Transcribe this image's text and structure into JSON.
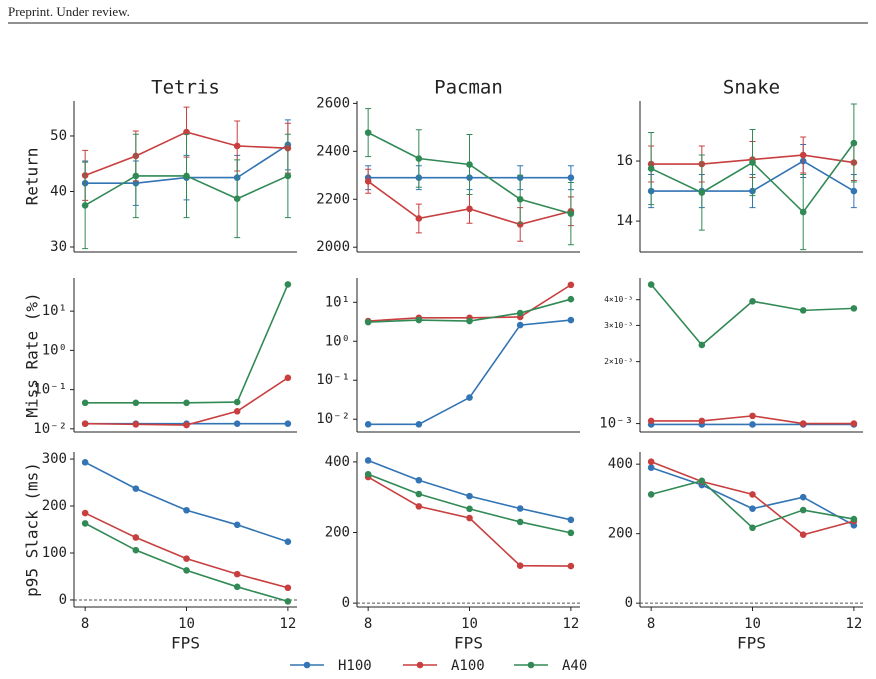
{
  "header": "Preprint. Under review.",
  "legend": [
    {
      "name": "H100",
      "color": "#3274b4"
    },
    {
      "name": "A100",
      "color": "#c83f3f"
    },
    {
      "name": "A40",
      "color": "#318a55"
    }
  ],
  "chart_data": [
    {
      "type": "line",
      "title": "Tetris",
      "ylabel": "Return",
      "x": [
        8,
        9,
        10,
        11,
        12
      ],
      "xlim": [
        7.78,
        12.18
      ],
      "ylim": [
        29.1,
        56.3
      ],
      "yticks": [
        30,
        40,
        50
      ],
      "series": [
        {
          "values": [
            41.5,
            41.5,
            42.5,
            42.5,
            48.4
          ],
          "errors": [
            4,
            4,
            4,
            4,
            4.5
          ]
        },
        {
          "values": [
            42.9,
            46.4,
            50.7,
            48.2,
            47.8
          ],
          "errors": [
            4.5,
            4.5,
            4.5,
            4.5,
            4.5
          ]
        },
        {
          "values": [
            37.5,
            42.8,
            42.8,
            38.7,
            42.8
          ],
          "errors": [
            7.8,
            7.5,
            7.5,
            7,
            7.5
          ]
        }
      ]
    },
    {
      "type": "line",
      "title": "Pacman",
      "x": [
        8,
        9,
        10,
        11,
        12
      ],
      "xlim": [
        7.78,
        12.18
      ],
      "ylim": [
        1980,
        2610
      ],
      "yticks": [
        2000,
        2200,
        2400,
        2600
      ],
      "series": [
        {
          "values": [
            2290,
            2290,
            2290,
            2290,
            2290
          ],
          "errors": [
            50,
            50,
            50,
            50,
            50
          ]
        },
        {
          "values": [
            2275,
            2120,
            2160,
            2095,
            2150
          ],
          "errors": [
            50,
            60,
            60,
            70,
            60
          ]
        },
        {
          "values": [
            2478,
            2370,
            2345,
            2200,
            2140
          ],
          "errors": [
            100,
            120,
            125,
            100,
            130
          ]
        }
      ]
    },
    {
      "type": "line",
      "title": "Snake",
      "x": [
        8,
        9,
        10,
        11,
        12
      ],
      "xlim": [
        7.78,
        12.18
      ],
      "ylim": [
        12.97,
        18
      ],
      "yticks": [
        14,
        16
      ],
      "series": [
        {
          "values": [
            15,
            15,
            15,
            16,
            15
          ],
          "errors": [
            0.55,
            0.55,
            0.55,
            0.55,
            0.55
          ]
        },
        {
          "values": [
            15.9,
            15.9,
            16.05,
            16.2,
            15.95
          ],
          "errors": [
            0.6,
            0.6,
            0.6,
            0.6,
            0.6
          ]
        },
        {
          "values": [
            15.75,
            14.95,
            15.95,
            14.3,
            16.6
          ],
          "errors": [
            1.2,
            1.25,
            1.1,
            1.25,
            1.3
          ]
        }
      ]
    },
    {
      "type": "line",
      "ylabel": "Miss Rate (%)",
      "log": true,
      "x": [
        8,
        9,
        10,
        11,
        12
      ],
      "xlim": [
        7.78,
        12.18
      ],
      "ylim": [
        0.0083,
        70
      ],
      "yticks": [
        {
          "value": 10,
          "label": "10¹"
        },
        {
          "value": 1,
          "label": "10⁰"
        },
        {
          "value": 0.1,
          "label": "10⁻¹"
        },
        {
          "value": 0.01,
          "label": "10⁻²"
        }
      ],
      "series": [
        {
          "values": [
            0.0135,
            0.0135,
            0.0135,
            0.0135,
            0.0135
          ]
        },
        {
          "values": [
            0.0135,
            0.013,
            0.0125,
            0.028,
            0.2
          ]
        },
        {
          "values": [
            0.046,
            0.046,
            0.046,
            0.048,
            48
          ]
        }
      ]
    },
    {
      "type": "line",
      "log": true,
      "x": [
        8,
        9,
        10,
        11,
        12
      ],
      "xlim": [
        7.78,
        12.18
      ],
      "ylim": [
        0.0047,
        42
      ],
      "yticks": [
        {
          "value": 10,
          "label": "10¹"
        },
        {
          "value": 1,
          "label": "10⁰"
        },
        {
          "value": 0.1,
          "label": "10⁻¹"
        },
        {
          "value": 0.01,
          "label": "10⁻²"
        }
      ],
      "series": [
        {
          "values": [
            0.0074,
            0.0074,
            0.036,
            2.6,
            3.5
          ]
        },
        {
          "values": [
            3.3,
            4,
            4,
            4.2,
            28
          ]
        },
        {
          "values": [
            3.1,
            3.5,
            3.3,
            5.3,
            12
          ]
        }
      ]
    },
    {
      "type": "line",
      "log": true,
      "x": [
        8,
        9,
        10,
        11,
        12
      ],
      "xlim": [
        7.78,
        12.18
      ],
      "ylim": [
        0.00091,
        0.0051
      ],
      "yticks": [
        {
          "value": 0.004,
          "label": "4×10⁻³"
        },
        {
          "value": 0.003,
          "label": "3×10⁻³"
        },
        {
          "value": 0.002,
          "label": "2×10⁻³"
        },
        {
          "value": 0.001,
          "label": "10⁻³"
        }
      ],
      "series": [
        {
          "values": [
            0.00099,
            0.00099,
            0.00099,
            0.00099,
            0.00099
          ]
        },
        {
          "values": [
            0.00103,
            0.00103,
            0.00109,
            0.001,
            0.001
          ]
        },
        {
          "values": [
            0.00474,
            0.00241,
            0.00393,
            0.00355,
            0.00363
          ]
        }
      ]
    },
    {
      "type": "line",
      "ylabel": "p95 Slack (ms)",
      "xlabel": "FPS",
      "x": [
        8,
        9,
        10,
        11,
        12
      ],
      "xlim": [
        7.78,
        12.18
      ],
      "xticks": [
        8,
        10,
        12
      ],
      "ylim": [
        -15,
        315
      ],
      "yticks": [
        0,
        100,
        200,
        300
      ],
      "hline": 0,
      "series": [
        {
          "values": [
            293,
            237,
            191,
            160,
            124
          ]
        },
        {
          "values": [
            185,
            133,
            88,
            55,
            26
          ]
        },
        {
          "values": [
            163,
            106,
            63,
            28,
            -3
          ]
        }
      ]
    },
    {
      "type": "line",
      "xlabel": "FPS",
      "x": [
        8,
        9,
        10,
        11,
        12
      ],
      "xlim": [
        7.78,
        12.18
      ],
      "xticks": [
        8,
        10,
        12
      ],
      "ylim": [
        -11,
        428
      ],
      "yticks": [
        0,
        200,
        400
      ],
      "hline": 0,
      "series": [
        {
          "values": [
            404,
            348,
            303,
            268,
            236
          ]
        },
        {
          "values": [
            357,
            274,
            241,
            106,
            105
          ]
        },
        {
          "values": [
            365,
            309,
            267,
            230,
            199
          ]
        }
      ]
    },
    {
      "type": "line",
      "xlabel": "FPS",
      "x": [
        8,
        9,
        10,
        11,
        12
      ],
      "xlim": [
        7.78,
        12.18
      ],
      "xticks": [
        8,
        10,
        12
      ],
      "ylim": [
        -11,
        435
      ],
      "yticks": [
        0,
        200,
        400
      ],
      "hline": 0,
      "series": [
        {
          "values": [
            390,
            340,
            272,
            305,
            224
          ]
        },
        {
          "values": [
            407,
            350,
            313,
            197,
            236
          ]
        },
        {
          "values": [
            313,
            352,
            217,
            268,
            242
          ]
        }
      ]
    }
  ]
}
